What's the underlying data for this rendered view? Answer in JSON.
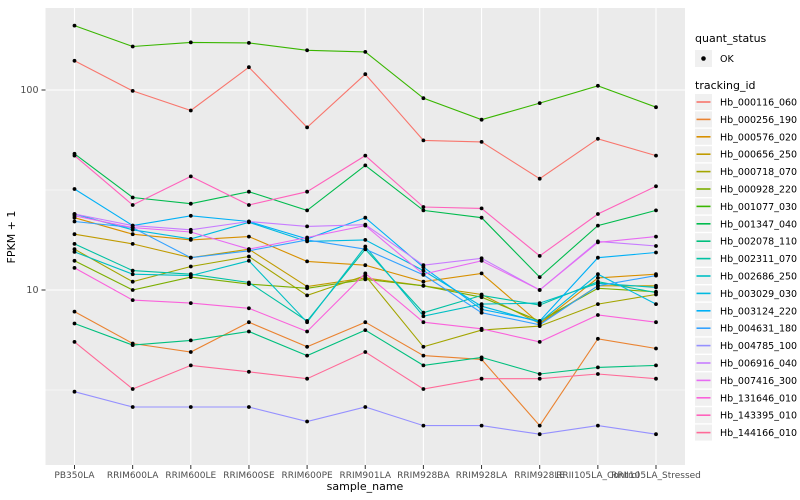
{
  "chart_data": {
    "type": "line",
    "title": "",
    "xlabel": "sample_name",
    "ylabel": "FPKM + 1",
    "y_scale": "log10",
    "y_ticks": [
      10,
      100
    ],
    "y_minor_ticks": [
      3.162,
      31.62
    ],
    "ylim": [
      1.33,
      248
    ],
    "grid": true,
    "panel_bg": "#EBEBEB",
    "grid_color": "#FFFFFF",
    "axis_text_color": "#4D4D4D",
    "point_color": "#000000",
    "legend_key_bg": "#F0F0F0",
    "legend_position": "right",
    "categories": [
      "PB350LA",
      "RRIM600LA",
      "RRIM600LE",
      "RRIM600SE",
      "RRIM600PE",
      "RRIM901LA",
      "RRIM928BA",
      "RRIM928LA",
      "RRIM928LE",
      "RRII105LA_Control",
      "RRII105LA_Stressed"
    ],
    "legend": {
      "quant_status": {
        "title": "quant_status",
        "entries": [
          "OK"
        ]
      },
      "tracking_id": {
        "title": "tracking_id"
      }
    },
    "series": [
      {
        "name": "Hb_000116_060",
        "color": "#F8766D",
        "values": [
          140,
          99,
          79,
          130,
          65,
          120,
          56,
          55,
          36,
          57,
          47
        ]
      },
      {
        "name": "Hb_000256_190",
        "color": "#EA8331",
        "values": [
          7.8,
          5.4,
          4.9,
          6.9,
          5.2,
          6.9,
          4.7,
          4.5,
          2.1,
          5.7,
          5.1
        ]
      },
      {
        "name": "Hb_000576_020",
        "color": "#D89000",
        "values": [
          23,
          19,
          17.8,
          18.5,
          13.9,
          13.3,
          11,
          12.1,
          6.8,
          11.5,
          12
        ]
      },
      {
        "name": "Hb_000656_250",
        "color": "#C09B00",
        "values": [
          19,
          17,
          14.5,
          16,
          10.4,
          11.5,
          10.5,
          9.5,
          6.8,
          10.5,
          10.5
        ]
      },
      {
        "name": "Hb_000718_070",
        "color": "#A3A500",
        "values": [
          16,
          11,
          13.1,
          14.7,
          9.4,
          11.8,
          5.2,
          6.3,
          6.6,
          8.5,
          9.5
        ]
      },
      {
        "name": "Hb_000928_220",
        "color": "#7CAE00",
        "values": [
          14,
          10,
          11.6,
          10.7,
          10.2,
          11.3,
          10.5,
          9.2,
          7,
          10.2,
          9.8
        ]
      },
      {
        "name": "Hb_001077_030",
        "color": "#39B600",
        "values": [
          210,
          165,
          173,
          172,
          158,
          155,
          91,
          71,
          86,
          105,
          82
        ]
      },
      {
        "name": "Hb_001347_040",
        "color": "#00BB4E",
        "values": [
          48,
          29,
          27,
          31,
          25,
          42,
          25,
          23,
          11.6,
          21,
          25
        ]
      },
      {
        "name": "Hb_002078_110",
        "color": "#00BF7D",
        "values": [
          6.8,
          5.3,
          5.6,
          6.2,
          4.7,
          6.3,
          4.2,
          4.6,
          3.8,
          4.1,
          4.2
        ]
      },
      {
        "name": "Hb_002311_070",
        "color": "#00C1A3",
        "values": [
          17,
          12.5,
          12,
          10.9,
          7,
          16,
          7.7,
          9.4,
          8.4,
          11,
          9.7
        ]
      },
      {
        "name": "Hb_002686_250",
        "color": "#00BFC4",
        "values": [
          15.5,
          12,
          11.8,
          14,
          6.9,
          16.5,
          7.4,
          8.5,
          8.6,
          10.8,
          10.3
        ]
      },
      {
        "name": "Hb_003029_030",
        "color": "#00BAE0",
        "values": [
          24,
          20,
          18,
          21.8,
          17.5,
          17.8,
          12.5,
          8.3,
          6.9,
          12,
          8.5
        ]
      },
      {
        "name": "Hb_003124_220",
        "color": "#00B0F6",
        "values": [
          32,
          21,
          23.5,
          22,
          18,
          23,
          13,
          8,
          7,
          14.5,
          15.4
        ]
      },
      {
        "name": "Hb_004631_180",
        "color": "#35A2FF",
        "values": [
          22,
          20.5,
          14.5,
          15.7,
          17.8,
          16,
          11.9,
          7.7,
          6.7,
          10.5,
          11.8
        ]
      },
      {
        "name": "Hb_004785_100",
        "color": "#9590FF",
        "values": [
          3.1,
          2.6,
          2.6,
          2.6,
          2.2,
          2.6,
          2.1,
          2.1,
          1.9,
          2.1,
          1.9
        ]
      },
      {
        "name": "Hb_006916_040",
        "color": "#C77CFF",
        "values": [
          24,
          21,
          20,
          22,
          20.8,
          21.2,
          13.3,
          14.4,
          10,
          17.5,
          16.6
        ]
      },
      {
        "name": "Hb_007416_300",
        "color": "#E76BF3",
        "values": [
          23.5,
          20.5,
          19.5,
          16,
          18.3,
          21,
          12,
          14,
          10,
          17.3,
          18.5
        ]
      },
      {
        "name": "Hb_131646_010",
        "color": "#FA62DB",
        "values": [
          12.9,
          8.9,
          8.6,
          8.1,
          6.2,
          12.1,
          6.9,
          6.4,
          5.5,
          7.5,
          6.9
        ]
      },
      {
        "name": "Hb_143395_010",
        "color": "#FF62BC",
        "values": [
          47,
          26.6,
          37,
          26.6,
          31,
          47,
          26,
          25.6,
          14.8,
          24,
          33
        ]
      },
      {
        "name": "Hb_144166_010",
        "color": "#FF6A98",
        "values": [
          5.5,
          3.2,
          4.2,
          3.9,
          3.6,
          4.9,
          3.2,
          3.6,
          3.6,
          3.8,
          3.6
        ]
      }
    ]
  }
}
